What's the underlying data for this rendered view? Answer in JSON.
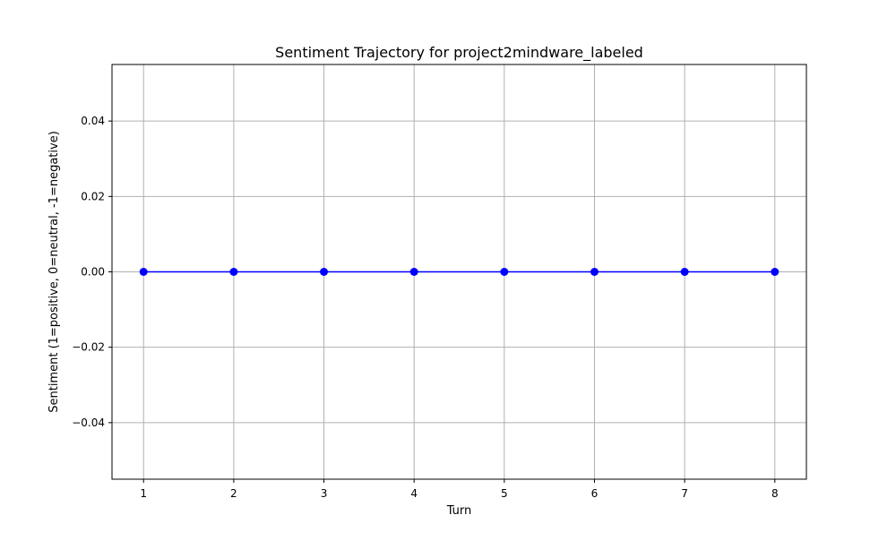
{
  "chart_data": {
    "type": "line",
    "title": "Sentiment Trajectory for project2mindware_labeled",
    "xlabel": "Turn",
    "ylabel": "Sentiment (1=positive, 0=neutral, -1=negative)",
    "x": [
      1,
      2,
      3,
      4,
      5,
      6,
      7,
      8
    ],
    "series": [
      {
        "values": [
          0,
          0,
          0,
          0,
          0,
          0,
          0,
          0
        ],
        "color": "#0000ff",
        "marker": "circle"
      }
    ],
    "xlim": [
      0.65,
      8.35
    ],
    "ylim": [
      -0.055,
      0.055
    ],
    "xticks": [
      1,
      2,
      3,
      4,
      5,
      6,
      7,
      8
    ],
    "xtick_labels": [
      "1",
      "2",
      "3",
      "4",
      "5",
      "6",
      "7",
      "8"
    ],
    "yticks": [
      -0.04,
      -0.02,
      0.0,
      0.02,
      0.04
    ],
    "ytick_labels": [
      "−0.04",
      "−0.02",
      "0.00",
      "0.02",
      "0.04"
    ],
    "grid": true,
    "grid_color": "#b0b0b0"
  }
}
